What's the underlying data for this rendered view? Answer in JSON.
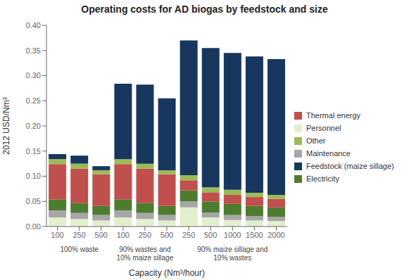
{
  "chart_data": {
    "type": "bar",
    "stacked": true,
    "title": "Operating costs for AD biogas by feedstock and size",
    "ylabel": "2012 USD/Nm³",
    "xlabel": "Capacity (Nm³/hour)",
    "categories": [
      "100",
      "250",
      "500",
      "100",
      "250",
      "500",
      "250",
      "500",
      "1000",
      "1500",
      "2000"
    ],
    "groups": [
      "100% waste",
      "100% waste",
      "100% waste",
      "90% wastes and\n10% maize sillage",
      "90% wastes and\n10% maize sillage",
      "90% wastes and\n10% maize sillage",
      "90% maize sillage and\n10% wastes",
      "90% maize sillage and\n10% wastes",
      "90% maize sillage and\n10% wastes",
      "90% maize sillage and\n10% wastes",
      "90% maize sillage and\n10% wastes"
    ],
    "series": [
      {
        "name": "Personnel",
        "color": "#e2efcf",
        "values": [
          0.018,
          0.015,
          0.012,
          0.018,
          0.015,
          0.012,
          0.038,
          0.018,
          0.013,
          0.012,
          0.011
        ]
      },
      {
        "name": "Maintenance",
        "color": "#a6a6a6",
        "values": [
          0.014,
          0.012,
          0.011,
          0.014,
          0.012,
          0.011,
          0.012,
          0.01,
          0.01,
          0.009,
          0.008
        ]
      },
      {
        "name": "Electricity",
        "color": "#4e7c2f",
        "values": [
          0.022,
          0.02,
          0.018,
          0.022,
          0.02,
          0.018,
          0.022,
          0.022,
          0.022,
          0.02,
          0.019
        ]
      },
      {
        "name": "Thermal energy",
        "color": "#c0504d",
        "values": [
          0.07,
          0.068,
          0.063,
          0.07,
          0.068,
          0.063,
          0.02,
          0.018,
          0.018,
          0.018,
          0.017
        ]
      },
      {
        "name": "Other",
        "color": "#9bbb59",
        "values": [
          0.01,
          0.01,
          0.008,
          0.01,
          0.01,
          0.008,
          0.01,
          0.01,
          0.01,
          0.008,
          0.008
        ]
      },
      {
        "name": "Feedstock (maize sillage)",
        "color": "#17375e",
        "values": [
          0.01,
          0.016,
          0.008,
          0.15,
          0.157,
          0.143,
          0.268,
          0.277,
          0.272,
          0.271,
          0.27
        ]
      }
    ],
    "ylim": [
      0,
      0.4
    ],
    "yticks": [
      {
        "value": 0,
        "label": "0.00"
      },
      0.05,
      {
        "value": 0.1,
        "label": "0.10"
      },
      0.15,
      {
        "value": 0.2,
        "label": "0.20"
      },
      0.25,
      {
        "value": 0.3,
        "label": "0.30"
      },
      0.35,
      {
        "value": 0.4,
        "label": "0.40"
      }
    ],
    "grid": false,
    "legend": "right"
  }
}
